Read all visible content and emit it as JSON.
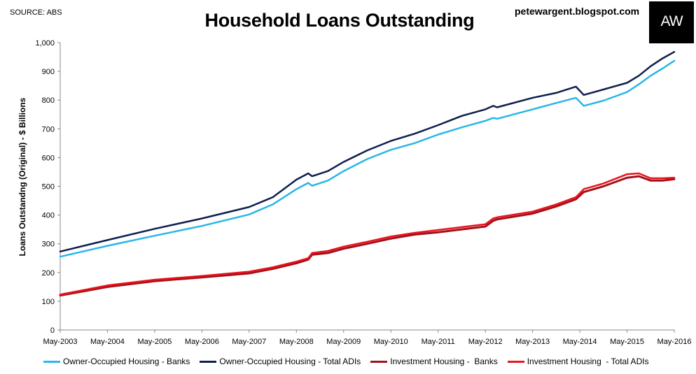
{
  "header": {
    "source": "SOURCE: ABS",
    "site": "petewargent.blogspot.com",
    "logo_text": "AW"
  },
  "chart_data": {
    "type": "line",
    "title": "Household Loans Outstanding",
    "xlabel": "",
    "ylabel": "Loans Outstandng (Original) - $ Billions",
    "ylim": [
      0,
      1000
    ],
    "yticks": [
      "0",
      "100",
      "200",
      "300",
      "400",
      "500",
      "600",
      "700",
      "800",
      "900",
      "1,000"
    ],
    "xlim": [
      "May-2003",
      "May-2016"
    ],
    "xticks": [
      "May-2003",
      "May-2004",
      "May-2005",
      "May-2006",
      "May-2007",
      "May-2008",
      "May-2009",
      "May-2010",
      "May-2011",
      "May-2012",
      "May-2013",
      "May-2014",
      "May-2015",
      "May-2016"
    ],
    "grid": false,
    "legend_position": "bottom",
    "series": [
      {
        "name": "Owner-Occupied Housing - Banks",
        "color": "#29b6e8",
        "points": [
          [
            "May-2003",
            255
          ],
          [
            "May-2004",
            293
          ],
          [
            "May-2005",
            328
          ],
          [
            "May-2006",
            362
          ],
          [
            "May-2007",
            402
          ],
          [
            "Nov-2007",
            437
          ],
          [
            "May-2008",
            490
          ],
          [
            "Aug-2008",
            512
          ],
          [
            "Sep-2008",
            502
          ],
          [
            "Jan-2009",
            520
          ],
          [
            "May-2009",
            553
          ],
          [
            "Nov-2009",
            595
          ],
          [
            "May-2010",
            627
          ],
          [
            "Nov-2010",
            650
          ],
          [
            "May-2011",
            680
          ],
          [
            "Nov-2011",
            705
          ],
          [
            "May-2012",
            728
          ],
          [
            "Jul-2012",
            738
          ],
          [
            "Aug-2012",
            735
          ],
          [
            "May-2013",
            768
          ],
          [
            "Nov-2013",
            790
          ],
          [
            "Apr-2014",
            808
          ],
          [
            "Jun-2014",
            780
          ],
          [
            "Nov-2014",
            798
          ],
          [
            "May-2015",
            828
          ],
          [
            "Aug-2015",
            855
          ],
          [
            "Nov-2015",
            885
          ],
          [
            "Feb-2016",
            910
          ],
          [
            "May-2016",
            937
          ]
        ]
      },
      {
        "name": "Owner-Occupied Housing - Total ADIs",
        "color": "#0e1f4d",
        "points": [
          [
            "May-2003",
            273
          ],
          [
            "May-2004",
            313
          ],
          [
            "May-2005",
            352
          ],
          [
            "May-2006",
            388
          ],
          [
            "May-2007",
            428
          ],
          [
            "Nov-2007",
            462
          ],
          [
            "May-2008",
            523
          ],
          [
            "Aug-2008",
            545
          ],
          [
            "Sep-2008",
            535
          ],
          [
            "Jan-2009",
            553
          ],
          [
            "May-2009",
            585
          ],
          [
            "Nov-2009",
            625
          ],
          [
            "May-2010",
            658
          ],
          [
            "Nov-2010",
            683
          ],
          [
            "May-2011",
            713
          ],
          [
            "Nov-2011",
            745
          ],
          [
            "May-2012",
            768
          ],
          [
            "Jul-2012",
            780
          ],
          [
            "Aug-2012",
            775
          ],
          [
            "May-2013",
            808
          ],
          [
            "Nov-2013",
            825
          ],
          [
            "Apr-2014",
            847
          ],
          [
            "Jun-2014",
            818
          ],
          [
            "Nov-2014",
            837
          ],
          [
            "May-2015",
            860
          ],
          [
            "Aug-2015",
            885
          ],
          [
            "Nov-2015",
            918
          ],
          [
            "Feb-2016",
            945
          ],
          [
            "May-2016",
            968
          ]
        ]
      },
      {
        "name": "Investment Housing -  Banks",
        "color": "#a3101a",
        "points": [
          [
            "May-2003",
            120
          ],
          [
            "May-2004",
            150
          ],
          [
            "May-2005",
            170
          ],
          [
            "May-2006",
            183
          ],
          [
            "May-2007",
            197
          ],
          [
            "Nov-2007",
            213
          ],
          [
            "May-2008",
            232
          ],
          [
            "Aug-2008",
            245
          ],
          [
            "Sep-2008",
            262
          ],
          [
            "Jan-2009",
            268
          ],
          [
            "May-2009",
            283
          ],
          [
            "Nov-2009",
            300
          ],
          [
            "May-2010",
            318
          ],
          [
            "Nov-2010",
            332
          ],
          [
            "May-2011",
            340
          ],
          [
            "Nov-2011",
            350
          ],
          [
            "May-2012",
            360
          ],
          [
            "Jul-2012",
            380
          ],
          [
            "Aug-2012",
            385
          ],
          [
            "May-2013",
            405
          ],
          [
            "Nov-2013",
            430
          ],
          [
            "Apr-2014",
            455
          ],
          [
            "Jun-2014",
            480
          ],
          [
            "Nov-2014",
            500
          ],
          [
            "May-2015",
            530
          ],
          [
            "Aug-2015",
            535
          ],
          [
            "Nov-2015",
            520
          ],
          [
            "Feb-2016",
            520
          ],
          [
            "May-2016",
            525
          ]
        ]
      },
      {
        "name": "Investment Housing  - Total ADIs",
        "color": "#e8141c",
        "points": [
          [
            "May-2003",
            123
          ],
          [
            "May-2004",
            155
          ],
          [
            "May-2005",
            175
          ],
          [
            "May-2006",
            188
          ],
          [
            "May-2007",
            203
          ],
          [
            "Nov-2007",
            218
          ],
          [
            "May-2008",
            238
          ],
          [
            "Aug-2008",
            250
          ],
          [
            "Sep-2008",
            268
          ],
          [
            "Jan-2009",
            275
          ],
          [
            "May-2009",
            290
          ],
          [
            "Nov-2009",
            307
          ],
          [
            "May-2010",
            325
          ],
          [
            "Nov-2010",
            338
          ],
          [
            "May-2011",
            348
          ],
          [
            "Nov-2011",
            358
          ],
          [
            "May-2012",
            368
          ],
          [
            "Jul-2012",
            388
          ],
          [
            "Aug-2012",
            392
          ],
          [
            "May-2013",
            412
          ],
          [
            "Nov-2013",
            437
          ],
          [
            "Apr-2014",
            462
          ],
          [
            "Jun-2014",
            490
          ],
          [
            "Nov-2014",
            510
          ],
          [
            "May-2015",
            542
          ],
          [
            "Aug-2015",
            545
          ],
          [
            "Nov-2015",
            528
          ],
          [
            "Feb-2016",
            528
          ],
          [
            "May-2016",
            530
          ]
        ]
      }
    ]
  }
}
